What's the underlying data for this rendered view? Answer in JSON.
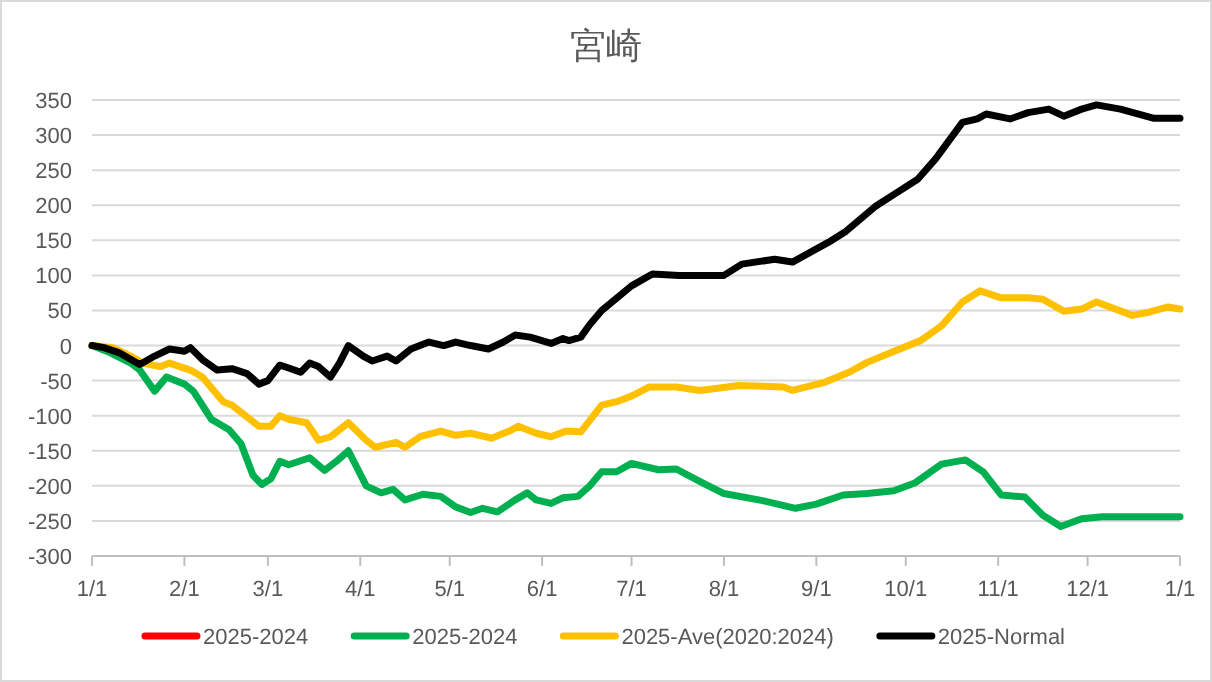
{
  "chart_data": {
    "type": "line",
    "title": "宮崎",
    "xlim": [
      "2025-01-01",
      "2026-01-01"
    ],
    "xticks": [
      {
        "value": "2025-01-01",
        "label": "1/1"
      },
      {
        "value": "2025-02-01",
        "label": "2/1"
      },
      {
        "value": "2025-03-01",
        "label": "3/1"
      },
      {
        "value": "2025-04-01",
        "label": "4/1"
      },
      {
        "value": "2025-05-01",
        "label": "5/1"
      },
      {
        "value": "2025-06-01",
        "label": "6/1"
      },
      {
        "value": "2025-07-01",
        "label": "7/1"
      },
      {
        "value": "2025-08-01",
        "label": "8/1"
      },
      {
        "value": "2025-09-01",
        "label": "9/1"
      },
      {
        "value": "2025-10-01",
        "label": "10/1"
      },
      {
        "value": "2025-11-01",
        "label": "11/1"
      },
      {
        "value": "2025-12-01",
        "label": "12/1"
      },
      {
        "value": "2026-01-01",
        "label": "1/1"
      }
    ],
    "ylim": [
      -300,
      350
    ],
    "yticks": [
      -300,
      -250,
      -200,
      -150,
      -100,
      -50,
      0,
      50,
      100,
      150,
      200,
      250,
      300,
      350
    ],
    "grid": "y",
    "legend": "bottom",
    "marker": "none",
    "line_style": "solid",
    "series": [
      {
        "name": "2025-2024",
        "color": "#ff0000"
      },
      {
        "name": "2025-2024",
        "color": "#00b050",
        "x": [
          "2025-01-01",
          "2025-01-07",
          "2025-01-14",
          "2025-01-17",
          "2025-01-22",
          "2025-01-26",
          "2025-02-01",
          "2025-02-04",
          "2025-02-10",
          "2025-02-16",
          "2025-02-20",
          "2025-02-24",
          "2025-02-27",
          "2025-03-02",
          "2025-03-05",
          "2025-03-08",
          "2025-03-15",
          "2025-03-20",
          "2025-03-24",
          "2025-03-28",
          "2025-04-03",
          "2025-04-08",
          "2025-04-12",
          "2025-04-16",
          "2025-04-22",
          "2025-04-28",
          "2025-05-03",
          "2025-05-08",
          "2025-05-12",
          "2025-05-17",
          "2025-05-23",
          "2025-05-27",
          "2025-05-30",
          "2025-06-04",
          "2025-06-08",
          "2025-06-13",
          "2025-06-17",
          "2025-06-21",
          "2025-06-26",
          "2025-07-01",
          "2025-07-10",
          "2025-07-16",
          "2025-07-25",
          "2025-08-01",
          "2025-08-14",
          "2025-08-25",
          "2025-09-01",
          "2025-09-10",
          "2025-09-18",
          "2025-09-27",
          "2025-10-04",
          "2025-10-13",
          "2025-10-21",
          "2025-10-27",
          "2025-11-02",
          "2025-11-10",
          "2025-11-16",
          "2025-11-22",
          "2025-11-29",
          "2025-12-06",
          "2026-01-01"
        ],
        "values": [
          0,
          -10,
          -25,
          -35,
          -65,
          -45,
          -55,
          -65,
          -105,
          -120,
          -140,
          -185,
          -198,
          -190,
          -165,
          -170,
          -160,
          -178,
          -165,
          -150,
          -200,
          -210,
          -205,
          -220,
          -212,
          -215,
          -230,
          -238,
          -232,
          -237,
          -220,
          -210,
          -220,
          -225,
          -217,
          -215,
          -200,
          -180,
          -180,
          -168,
          -177,
          -176,
          -196,
          -211,
          -221,
          -232,
          -226,
          -213,
          -211,
          -207,
          -196,
          -169,
          -163,
          -180,
          -213,
          -216,
          -242,
          -258,
          -247,
          -244,
          -244
        ]
      },
      {
        "name": "2025-Ave(2020:2024)",
        "color": "#ffc000",
        "x": [
          "2025-01-01",
          "2025-01-08",
          "2025-01-14",
          "2025-01-18",
          "2025-01-24",
          "2025-01-27",
          "2025-02-03",
          "2025-02-07",
          "2025-02-14",
          "2025-02-17",
          "2025-02-23",
          "2025-02-26",
          "2025-03-02",
          "2025-03-05",
          "2025-03-08",
          "2025-03-14",
          "2025-03-18",
          "2025-03-22",
          "2025-03-28",
          "2025-04-03",
          "2025-04-06",
          "2025-04-13",
          "2025-04-16",
          "2025-04-21",
          "2025-04-28",
          "2025-05-03",
          "2025-05-08",
          "2025-05-15",
          "2025-05-21",
          "2025-05-24",
          "2025-05-30",
          "2025-06-04",
          "2025-06-09",
          "2025-06-14",
          "2025-06-21",
          "2025-06-26",
          "2025-07-01",
          "2025-07-07",
          "2025-07-16",
          "2025-07-24",
          "2025-08-06",
          "2025-08-21",
          "2025-08-24",
          "2025-09-04",
          "2025-09-12",
          "2025-09-18",
          "2025-09-30",
          "2025-10-06",
          "2025-10-13",
          "2025-10-20",
          "2025-10-26",
          "2025-11-02",
          "2025-11-11",
          "2025-11-16",
          "2025-11-23",
          "2025-11-29",
          "2025-12-04",
          "2025-12-16",
          "2025-12-21",
          "2025-12-28",
          "2026-01-01"
        ],
        "values": [
          0,
          -3,
          -15,
          -25,
          -30,
          -25,
          -35,
          -45,
          -80,
          -85,
          -105,
          -115,
          -115,
          -100,
          -105,
          -110,
          -135,
          -130,
          -110,
          -135,
          -145,
          -138,
          -145,
          -130,
          -122,
          -128,
          -125,
          -132,
          -122,
          -115,
          -125,
          -130,
          -122,
          -123,
          -85,
          -80,
          -72,
          -59,
          -59,
          -64,
          -57,
          -59,
          -64,
          -52,
          -38,
          -24,
          -3,
          7,
          28,
          62,
          78,
          68,
          68,
          66,
          49,
          52,
          62,
          43,
          47,
          55,
          52
        ]
      },
      {
        "name": "2025-Normal",
        "color": "#000000",
        "x": [
          "2025-01-01",
          "2025-01-05",
          "2025-01-10",
          "2025-01-17",
          "2025-01-22",
          "2025-01-27",
          "2025-02-01",
          "2025-02-03",
          "2025-02-07",
          "2025-02-12",
          "2025-02-17",
          "2025-02-22",
          "2025-02-26",
          "2025-03-01",
          "2025-03-05",
          "2025-03-08",
          "2025-03-12",
          "2025-03-15",
          "2025-03-18",
          "2025-03-22",
          "2025-03-25",
          "2025-03-28",
          "2025-04-02",
          "2025-04-05",
          "2025-04-10",
          "2025-04-13",
          "2025-04-18",
          "2025-04-24",
          "2025-04-29",
          "2025-05-03",
          "2025-05-08",
          "2025-05-14",
          "2025-05-19",
          "2025-05-23",
          "2025-05-28",
          "2025-06-04",
          "2025-06-08",
          "2025-06-10",
          "2025-06-14",
          "2025-06-17",
          "2025-06-21",
          "2025-07-01",
          "2025-07-08",
          "2025-07-17",
          "2025-08-01",
          "2025-08-07",
          "2025-08-18",
          "2025-08-24",
          "2025-09-05",
          "2025-09-11",
          "2025-09-21",
          "2025-09-28",
          "2025-10-05",
          "2025-10-11",
          "2025-10-20",
          "2025-10-25",
          "2025-10-28",
          "2025-11-05",
          "2025-11-11",
          "2025-11-18",
          "2025-11-23",
          "2025-11-29",
          "2025-12-04",
          "2025-12-12",
          "2025-12-23",
          "2026-01-01"
        ],
        "values": [
          0,
          -3,
          -10,
          -27,
          -15,
          -5,
          -8,
          -3,
          -20,
          -35,
          -33,
          -40,
          -55,
          -50,
          -28,
          -32,
          -38,
          -25,
          -30,
          -45,
          -25,
          0,
          -15,
          -22,
          -15,
          -22,
          -5,
          5,
          0,
          5,
          0,
          -5,
          5,
          15,
          12,
          3,
          10,
          7,
          12,
          30,
          50,
          85,
          102,
          100,
          100,
          116,
          123,
          119,
          147,
          163,
          199,
          218,
          237,
          266,
          318,
          323,
          330,
          323,
          332,
          337,
          327,
          337,
          343,
          337,
          324,
          324
        ]
      }
    ]
  }
}
